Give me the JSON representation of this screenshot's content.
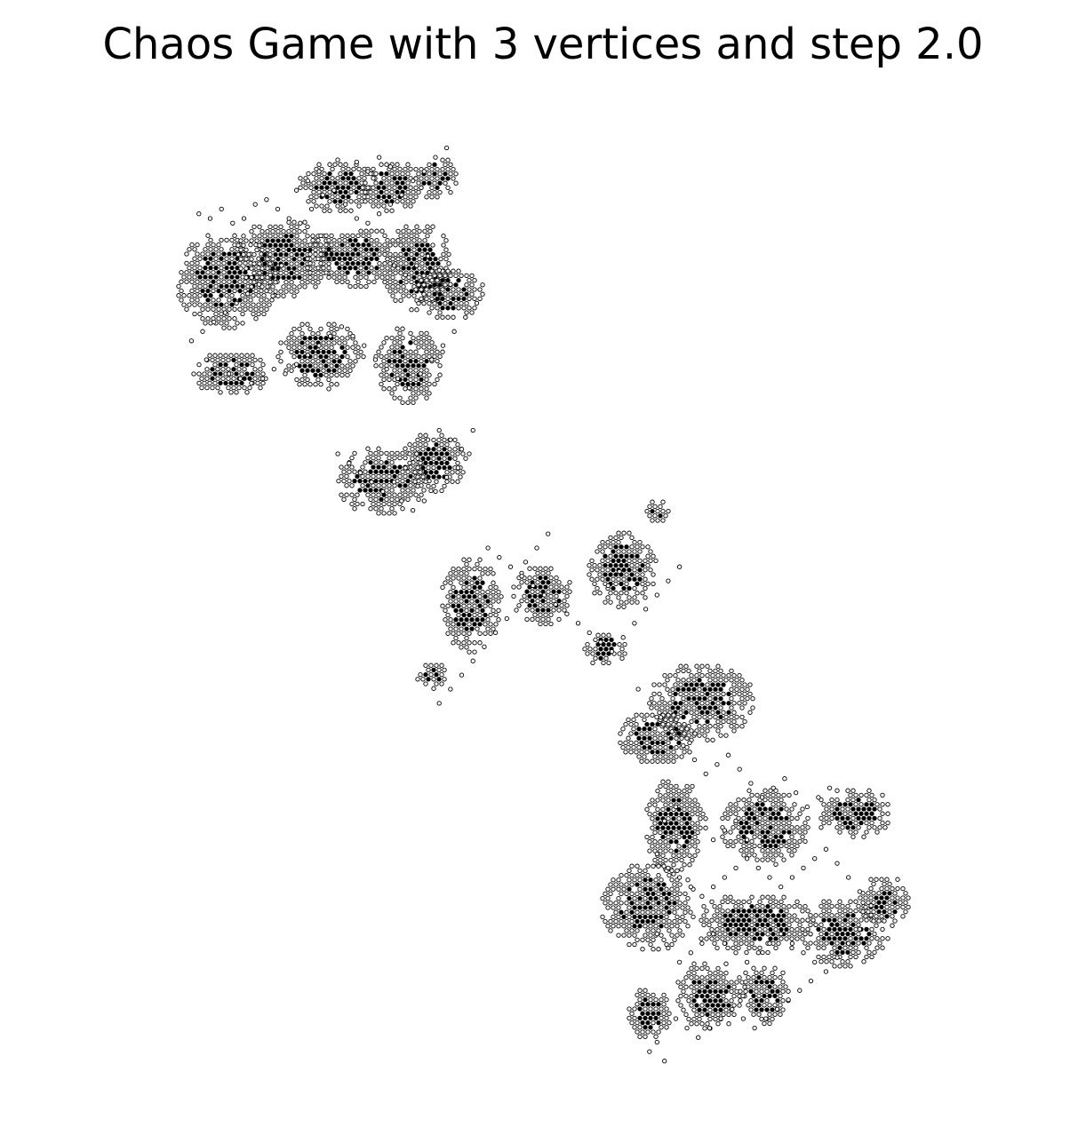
{
  "chart_data": {
    "type": "scatter",
    "title": "Chaos Game with 3 vertices and step 2.0",
    "xlabel": "",
    "ylabel": "",
    "axes_visible": false,
    "grid": false,
    "legend": "none",
    "xlim": [
      -1.0,
      1.0
    ],
    "ylim": [
      -1.0,
      1.0
    ],
    "marker": "hollow-circle",
    "point_color": "#000000",
    "background_color": "#ffffff",
    "points_note_series": [
      {
        "points": [
          [
            -0.92,
            0.81
          ],
          [
            -0.89,
            0.8
          ],
          [
            -0.86,
            0.82
          ],
          [
            -0.83,
            0.79
          ],
          [
            -0.8,
            0.8
          ],
          [
            -0.77,
            0.83
          ],
          [
            -0.74,
            0.84
          ],
          [
            -0.71,
            0.82
          ],
          [
            -0.68,
            0.8
          ],
          [
            -0.65,
            0.79
          ],
          [
            -0.62,
            0.82
          ],
          [
            -0.59,
            0.85
          ],
          [
            -0.56,
            0.86
          ],
          [
            -0.53,
            0.83
          ],
          [
            -0.5,
            0.8
          ],
          [
            -0.47,
            0.79
          ],
          [
            -0.44,
            0.81
          ],
          [
            -0.41,
            0.83
          ],
          [
            -0.38,
            0.85
          ],
          [
            -0.35,
            0.88
          ],
          [
            -0.32,
            0.9
          ],
          [
            -0.29,
            0.93
          ],
          [
            -0.26,
            0.95
          ],
          [
            -0.5,
            0.92
          ],
          [
            -0.47,
            0.9
          ],
          [
            -0.44,
            0.93
          ],
          [
            -0.41,
            0.91
          ],
          [
            -0.6,
            0.9
          ],
          [
            -0.63,
            0.88
          ],
          [
            -0.66,
            0.86
          ],
          [
            -0.7,
            0.7
          ],
          [
            -0.73,
            0.68
          ],
          [
            -0.76,
            0.66
          ],
          [
            -0.79,
            0.64
          ],
          [
            -0.82,
            0.62
          ],
          [
            -0.85,
            0.6
          ],
          [
            -0.88,
            0.58
          ],
          [
            -0.91,
            0.56
          ],
          [
            -0.94,
            0.54
          ],
          [
            -0.9,
            0.5
          ],
          [
            -0.87,
            0.48
          ],
          [
            -0.84,
            0.47
          ],
          [
            -0.81,
            0.46
          ],
          [
            -0.78,
            0.45
          ],
          [
            -0.75,
            0.46
          ],
          [
            -0.72,
            0.48
          ],
          [
            -0.69,
            0.47
          ],
          [
            -0.66,
            0.49
          ],
          [
            -0.63,
            0.51
          ],
          [
            -0.6,
            0.53
          ],
          [
            -0.57,
            0.55
          ],
          [
            -0.54,
            0.57
          ],
          [
            -0.51,
            0.55
          ],
          [
            -0.48,
            0.53
          ],
          [
            -0.45,
            0.5
          ],
          [
            -0.42,
            0.48
          ],
          [
            -0.39,
            0.46
          ],
          [
            -0.36,
            0.44
          ],
          [
            -0.33,
            0.47
          ],
          [
            -0.3,
            0.5
          ],
          [
            -0.27,
            0.53
          ],
          [
            -0.24,
            0.56
          ],
          [
            -0.21,
            0.59
          ],
          [
            -0.18,
            0.62
          ],
          [
            -0.25,
            0.66
          ],
          [
            -0.28,
            0.69
          ],
          [
            -0.31,
            0.72
          ],
          [
            -0.34,
            0.7
          ],
          [
            -0.37,
            0.68
          ],
          [
            -0.4,
            0.7
          ],
          [
            -0.55,
            0.3
          ],
          [
            -0.52,
            0.28
          ],
          [
            -0.49,
            0.26
          ],
          [
            -0.46,
            0.24
          ],
          [
            -0.43,
            0.22
          ],
          [
            -0.4,
            0.24
          ],
          [
            -0.37,
            0.27
          ],
          [
            -0.34,
            0.3
          ],
          [
            -0.31,
            0.33
          ],
          [
            -0.28,
            0.35
          ],
          [
            -0.25,
            0.33
          ],
          [
            -0.22,
            0.31
          ],
          [
            -0.19,
            0.35
          ],
          [
            -0.2,
            0.3
          ],
          [
            -0.23,
            0.27
          ],
          [
            -0.26,
            0.25
          ],
          [
            -0.29,
            0.22
          ],
          [
            -0.32,
            0.2
          ],
          [
            -0.35,
            0.18
          ],
          [
            -0.38,
            0.2
          ],
          [
            -0.15,
            0.1
          ],
          [
            -0.12,
            0.08
          ],
          [
            -0.09,
            0.06
          ],
          [
            -0.06,
            0.04
          ],
          [
            -0.03,
            0.02
          ],
          [
            0.0,
            0.0
          ],
          [
            0.03,
            -0.02
          ],
          [
            0.06,
            -0.04
          ],
          [
            0.09,
            -0.06
          ],
          [
            0.12,
            -0.08
          ],
          [
            0.15,
            -0.1
          ],
          [
            0.18,
            -0.12
          ],
          [
            0.21,
            -0.09
          ],
          [
            0.24,
            -0.06
          ],
          [
            0.27,
            -0.03
          ],
          [
            0.3,
            0.0
          ],
          [
            0.33,
            0.03
          ],
          [
            0.36,
            0.06
          ],
          [
            0.2,
            0.05
          ],
          [
            0.17,
            0.02
          ],
          [
            -0.1,
            -0.05
          ],
          [
            -0.13,
            -0.08
          ],
          [
            -0.16,
            -0.11
          ],
          [
            -0.19,
            -0.14
          ],
          [
            -0.22,
            -0.17
          ],
          [
            -0.25,
            -0.2
          ],
          [
            -0.28,
            -0.23
          ],
          [
            -0.05,
            0.07
          ],
          [
            -0.02,
            0.1
          ],
          [
            0.01,
            0.13
          ],
          [
            0.25,
            -0.2
          ],
          [
            0.28,
            -0.23
          ],
          [
            0.31,
            -0.26
          ],
          [
            0.34,
            -0.29
          ],
          [
            0.37,
            -0.32
          ],
          [
            0.4,
            -0.35
          ],
          [
            0.43,
            -0.38
          ],
          [
            0.46,
            -0.36
          ],
          [
            0.49,
            -0.34
          ],
          [
            0.52,
            -0.37
          ],
          [
            0.55,
            -0.4
          ],
          [
            0.58,
            -0.43
          ],
          [
            0.61,
            -0.41
          ],
          [
            0.64,
            -0.39
          ],
          [
            0.67,
            -0.42
          ],
          [
            0.7,
            -0.45
          ],
          [
            0.73,
            -0.43
          ],
          [
            0.76,
            -0.41
          ],
          [
            0.35,
            -0.45
          ],
          [
            0.32,
            -0.48
          ],
          [
            0.3,
            -0.55
          ],
          [
            0.33,
            -0.58
          ],
          [
            0.36,
            -0.6
          ],
          [
            0.39,
            -0.62
          ],
          [
            0.42,
            -0.64
          ],
          [
            0.45,
            -0.62
          ],
          [
            0.48,
            -0.6
          ],
          [
            0.51,
            -0.58
          ],
          [
            0.54,
            -0.56
          ],
          [
            0.57,
            -0.58
          ],
          [
            0.6,
            -0.6
          ],
          [
            0.63,
            -0.62
          ],
          [
            0.66,
            -0.6
          ],
          [
            0.69,
            -0.58
          ],
          [
            0.72,
            -0.56
          ],
          [
            0.75,
            -0.54
          ],
          [
            0.78,
            -0.57
          ],
          [
            0.81,
            -0.6
          ],
          [
            0.84,
            -0.63
          ],
          [
            0.87,
            -0.66
          ],
          [
            0.3,
            -0.72
          ],
          [
            0.33,
            -0.75
          ],
          [
            0.36,
            -0.78
          ],
          [
            0.39,
            -0.76
          ],
          [
            0.42,
            -0.74
          ],
          [
            0.45,
            -0.72
          ],
          [
            0.48,
            -0.74
          ],
          [
            0.51,
            -0.76
          ],
          [
            0.54,
            -0.78
          ],
          [
            0.57,
            -0.76
          ],
          [
            0.6,
            -0.74
          ],
          [
            0.63,
            -0.72
          ],
          [
            0.66,
            -0.74
          ],
          [
            0.69,
            -0.76
          ],
          [
            0.72,
            -0.78
          ],
          [
            0.75,
            -0.8
          ],
          [
            0.78,
            -0.77
          ],
          [
            0.81,
            -0.74
          ],
          [
            0.84,
            -0.71
          ],
          [
            0.87,
            -0.68
          ],
          [
            0.35,
            -0.9
          ],
          [
            0.38,
            -0.92
          ],
          [
            0.41,
            -0.94
          ],
          [
            0.44,
            -0.92
          ],
          [
            0.47,
            -0.9
          ],
          [
            0.5,
            -0.88
          ],
          [
            0.53,
            -0.9
          ],
          [
            0.56,
            -0.92
          ],
          [
            0.59,
            -0.9
          ],
          [
            0.62,
            -0.88
          ],
          [
            0.28,
            -0.97
          ],
          [
            0.3,
            -0.95
          ],
          [
            0.32,
            -0.99
          ],
          [
            0.65,
            -0.86
          ],
          [
            0.68,
            -0.84
          ],
          [
            0.71,
            -0.82
          ],
          [
            0.45,
            -0.52
          ],
          [
            0.48,
            -0.5
          ],
          [
            0.51,
            -0.48
          ],
          [
            0.54,
            -0.52
          ]
        ]
      }
    ]
  }
}
